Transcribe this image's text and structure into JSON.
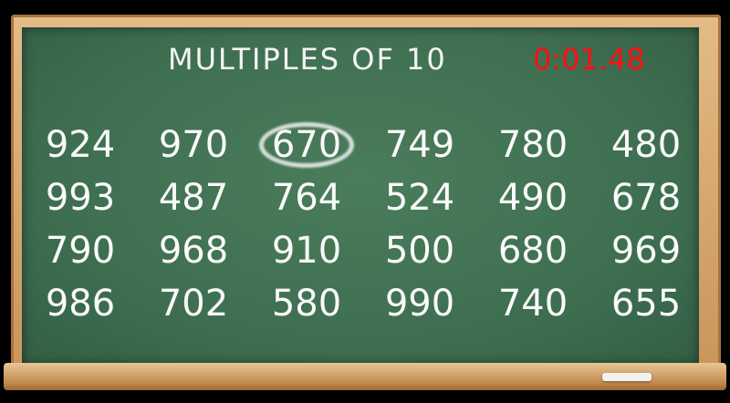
{
  "title": "MULTIPLES OF 10",
  "timer": "0:01.48",
  "colors": {
    "board": "#3f6f51",
    "chalk": "#fafafa",
    "timer": "#ff1010",
    "frame": "#d6a86e"
  },
  "numbers": [
    [
      "924",
      "970",
      "670",
      "749",
      "780",
      "480"
    ],
    [
      "993",
      "487",
      "764",
      "524",
      "490",
      "678"
    ],
    [
      "790",
      "968",
      "910",
      "500",
      "680",
      "969"
    ],
    [
      "986",
      "702",
      "580",
      "990",
      "740",
      "655"
    ]
  ],
  "circled": [
    "670"
  ]
}
